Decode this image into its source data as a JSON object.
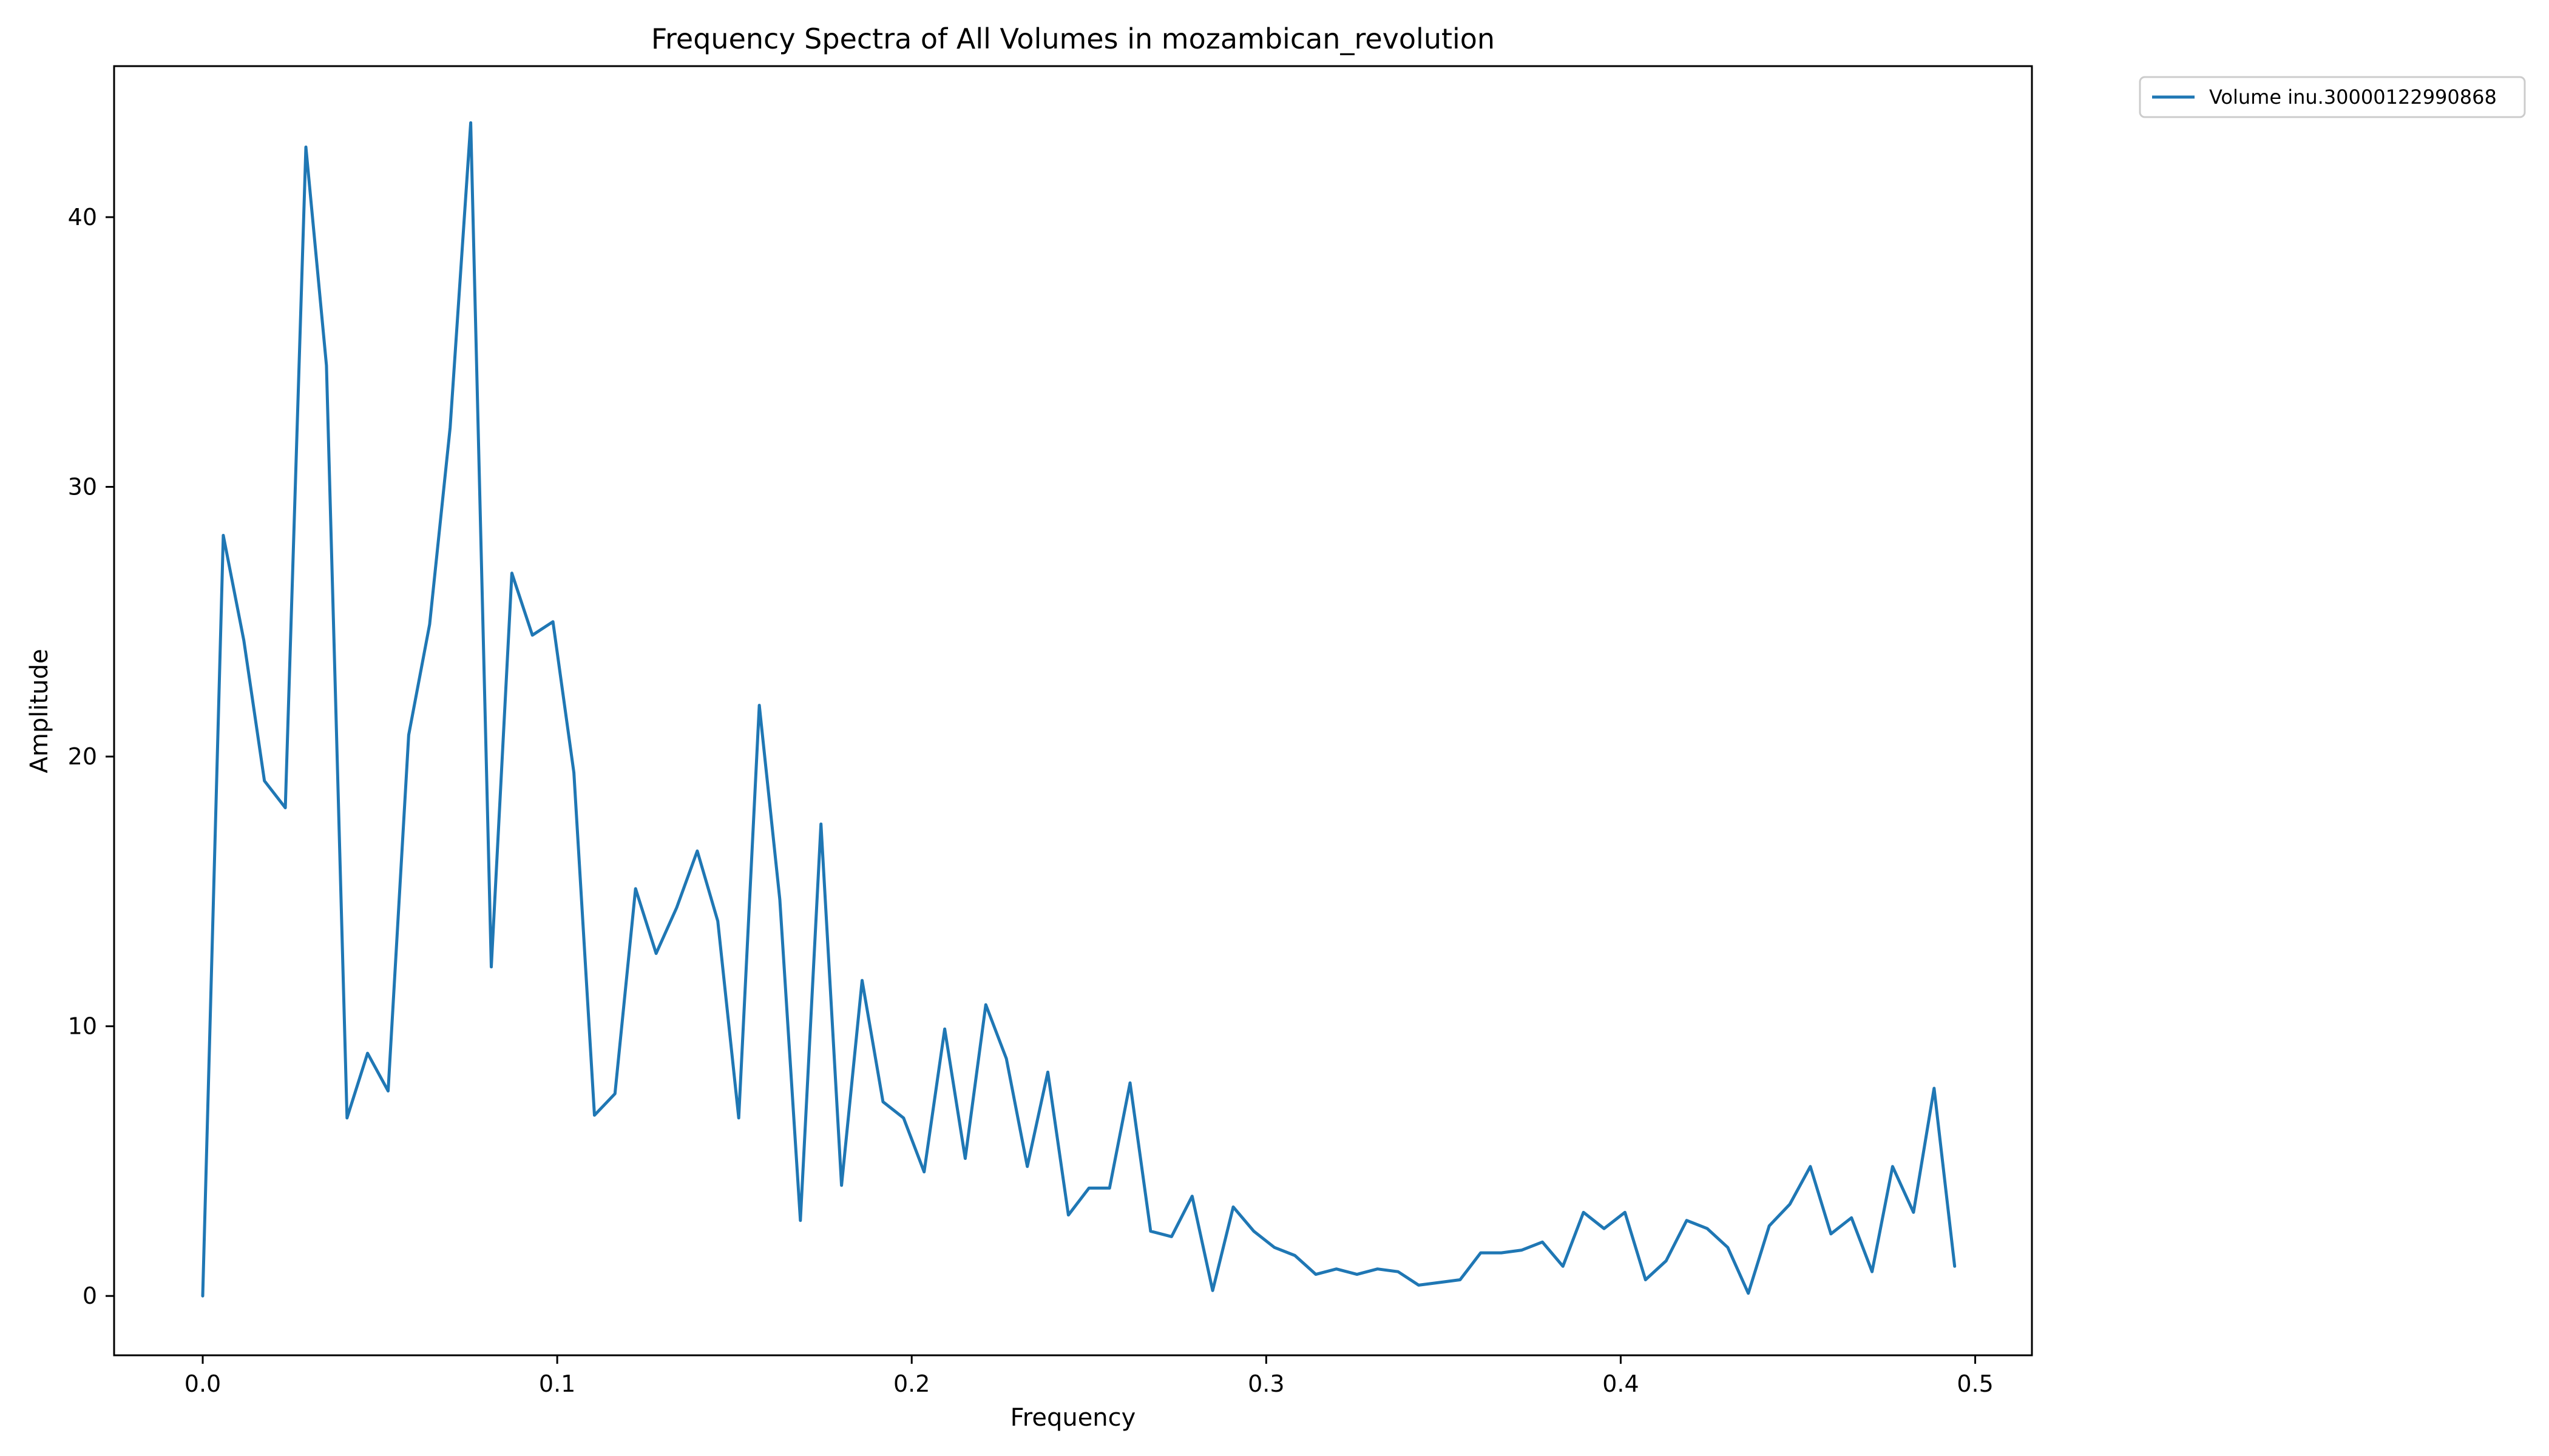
{
  "chart_data": {
    "type": "line",
    "title": "Frequency Spectra of All Volumes in mozambican_revolution",
    "xlabel": "Frequency",
    "ylabel": "Amplitude",
    "xlim": [
      -0.025,
      0.516
    ],
    "ylim": [
      -2.2,
      45.6
    ],
    "xticks": [
      0.0,
      0.1,
      0.2,
      0.3,
      0.4,
      0.5
    ],
    "xtick_labels": [
      "0.0",
      "0.1",
      "0.2",
      "0.3",
      "0.4",
      "0.5"
    ],
    "yticks": [
      0,
      10,
      20,
      30,
      40
    ],
    "ytick_labels": [
      "0",
      "10",
      "20",
      "30",
      "40"
    ],
    "grid": false,
    "legend_position": "outside-top-right",
    "series": [
      {
        "name": "Volume inu.30000122990868",
        "color": "#1f77b4",
        "x": [
          0.0,
          0.0058,
          0.0116,
          0.0174,
          0.0233,
          0.0291,
          0.0349,
          0.0407,
          0.0465,
          0.0523,
          0.0581,
          0.064,
          0.0698,
          0.0756,
          0.0814,
          0.0872,
          0.093,
          0.0988,
          0.1047,
          0.1105,
          0.1163,
          0.1221,
          0.1279,
          0.1337,
          0.1395,
          0.1453,
          0.1512,
          0.157,
          0.1628,
          0.1686,
          0.1744,
          0.1802,
          0.186,
          0.1919,
          0.1977,
          0.2035,
          0.2093,
          0.2151,
          0.2209,
          0.2267,
          0.2326,
          0.2384,
          0.2442,
          0.25,
          0.2558,
          0.2616,
          0.2674,
          0.2733,
          0.2791,
          0.2849,
          0.2907,
          0.2965,
          0.3023,
          0.3081,
          0.314,
          0.3198,
          0.3256,
          0.3314,
          0.3372,
          0.343,
          0.3488,
          0.3547,
          0.3605,
          0.3663,
          0.3721,
          0.3779,
          0.3837,
          0.3895,
          0.3953,
          0.4012,
          0.407,
          0.4128,
          0.4186,
          0.4244,
          0.4302,
          0.436,
          0.4419,
          0.4477,
          0.4535,
          0.4593,
          0.4651,
          0.4709,
          0.4767,
          0.4826,
          0.4884,
          0.4942
        ],
        "y": [
          0.0,
          28.2,
          24.3,
          19.1,
          18.1,
          42.6,
          34.5,
          6.6,
          9.0,
          7.6,
          20.8,
          24.9,
          32.2,
          43.5,
          12.2,
          26.8,
          24.5,
          25.0,
          19.4,
          6.7,
          7.5,
          15.1,
          12.7,
          14.4,
          16.5,
          13.9,
          6.6,
          21.9,
          14.7,
          2.8,
          17.5,
          4.1,
          11.7,
          7.2,
          6.6,
          4.6,
          9.9,
          5.1,
          10.8,
          8.8,
          4.8,
          8.3,
          3.0,
          4.0,
          4.0,
          7.9,
          2.4,
          2.2,
          3.7,
          0.2,
          3.3,
          2.4,
          1.8,
          1.5,
          0.8,
          1.0,
          0.8,
          1.0,
          0.9,
          0.4,
          0.5,
          0.6,
          1.6,
          1.6,
          1.7,
          2.0,
          1.1,
          3.1,
          2.5,
          3.1,
          0.6,
          1.3,
          2.8,
          2.5,
          1.8,
          0.1,
          2.6,
          3.4,
          4.8,
          2.3,
          2.9,
          0.9,
          4.8,
          3.1,
          7.7,
          1.1
        ]
      }
    ]
  }
}
